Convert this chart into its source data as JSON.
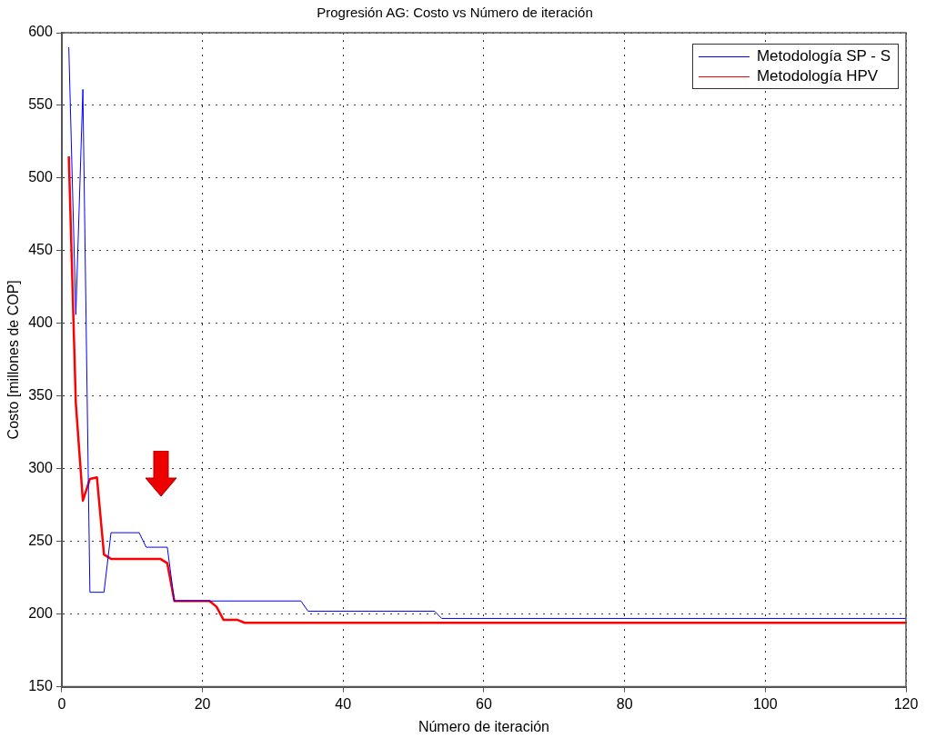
{
  "chart_data": {
    "type": "line",
    "title": "Progresión AG: Costo vs Número de iteración",
    "xlabel": "Número de iteración",
    "ylabel": "Costo [millones de COP]",
    "series": [
      {
        "name": "Metodología SP - S",
        "color": "#0000ff",
        "x": [
          1,
          2,
          3,
          4,
          6,
          7,
          11,
          12,
          15,
          16,
          34,
          35,
          53,
          54,
          120
        ],
        "values": [
          590,
          406,
          561,
          215,
          215,
          256,
          256,
          246,
          246,
          209,
          209,
          202,
          202,
          197,
          197
        ]
      },
      {
        "name": "Metodología HPV",
        "color": "#ff0000",
        "x": [
          1,
          2,
          3,
          4,
          5,
          6,
          7,
          14,
          15,
          16,
          21,
          22,
          23,
          25,
          26,
          120
        ],
        "values": [
          515,
          345,
          278,
          293,
          294,
          241,
          238,
          238,
          235,
          209,
          209,
          205,
          196,
          196,
          194,
          194
        ]
      }
    ],
    "xlim": [
      0,
      120
    ],
    "xticks": [
      0,
      20,
      40,
      60,
      80,
      100,
      120
    ],
    "ylim": [
      150,
      600
    ],
    "yticks": [
      150,
      200,
      250,
      300,
      350,
      400,
      450,
      500,
      550,
      600
    ],
    "grid": true,
    "legend": "top right",
    "marker": "none",
    "line_style": "solid"
  }
}
